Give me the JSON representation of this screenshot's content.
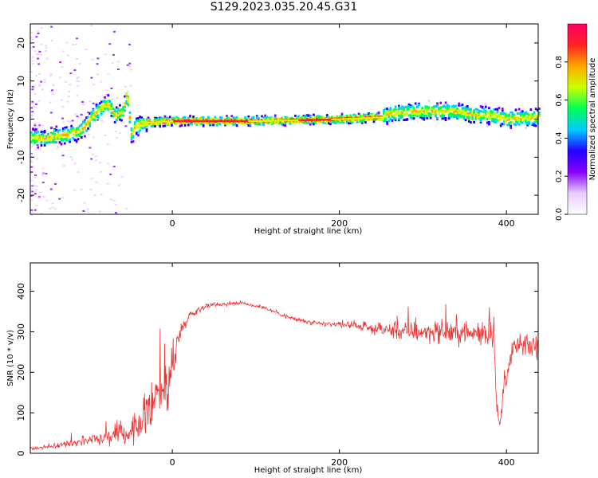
{
  "title": "S129.2023.035.20.45.G31",
  "chart_data": [
    {
      "type": "heatmap",
      "name": "spectrogram",
      "xlabel": "Height of straight line (km)",
      "ylabel": "Frequency (Hz)",
      "xlim": [
        -170,
        438
      ],
      "ylim": [
        -25,
        25
      ],
      "xticks": [
        0,
        200,
        400
      ],
      "yticks": [
        -20,
        -10,
        0,
        10,
        20
      ],
      "ridge": [
        {
          "x": -170,
          "y": -5
        },
        {
          "x": -150,
          "y": -5
        },
        {
          "x": -125,
          "y": -4
        },
        {
          "x": -110,
          "y": -3
        },
        {
          "x": -95,
          "y": 1
        },
        {
          "x": -85,
          "y": 3
        },
        {
          "x": -78,
          "y": 4
        },
        {
          "x": -70,
          "y": 1
        },
        {
          "x": -60,
          "y": 2
        },
        {
          "x": -55,
          "y": 7
        },
        {
          "x": -50,
          "y": -4
        },
        {
          "x": -45,
          "y": -2
        },
        {
          "x": -35,
          "y": -1
        },
        {
          "x": 0,
          "y": -0.5
        },
        {
          "x": 100,
          "y": -0.5
        },
        {
          "x": 150,
          "y": -0.3
        },
        {
          "x": 200,
          "y": 0
        },
        {
          "x": 250,
          "y": 0.5
        },
        {
          "x": 260,
          "y": 1.5
        },
        {
          "x": 290,
          "y": 2
        },
        {
          "x": 340,
          "y": 2
        },
        {
          "x": 360,
          "y": 1
        },
        {
          "x": 380,
          "y": 1
        },
        {
          "x": 400,
          "y": 0
        },
        {
          "x": 438,
          "y": 0.5
        }
      ],
      "colorbar": {
        "label": "Normalized spectral amplitude",
        "range": [
          0,
          1
        ],
        "ticks": [
          0.0,
          0.2,
          0.4,
          0.6,
          0.8
        ],
        "tick_labels": [
          "0.0",
          "0.2",
          "0.4",
          "0.6",
          "0.8"
        ],
        "colors": [
          "#ffffff",
          "#e6ccff",
          "#8800ff",
          "#2200ff",
          "#00ccff",
          "#00ff55",
          "#ccff00",
          "#ffaa00",
          "#ff2222",
          "#ff0066"
        ]
      }
    },
    {
      "type": "line",
      "name": "snr",
      "xlabel": "Height of straight line (km)",
      "ylabel": "SNR (10 * v/v)",
      "xlim": [
        -170,
        438
      ],
      "ylim": [
        0,
        470
      ],
      "xticks": [
        0,
        200,
        400
      ],
      "yticks": [
        0,
        100,
        200,
        300,
        400
      ],
      "series": [
        {
          "name": "SNR",
          "color": "#ee3333",
          "points": [
            {
              "x": -170,
              "y": 12,
              "n": 8
            },
            {
              "x": -140,
              "y": 18,
              "n": 10
            },
            {
              "x": -110,
              "y": 30,
              "n": 18
            },
            {
              "x": -80,
              "y": 40,
              "n": 40
            },
            {
              "x": -50,
              "y": 55,
              "n": 50
            },
            {
              "x": -35,
              "y": 80,
              "n": 70
            },
            {
              "x": -25,
              "y": 130,
              "n": 130
            },
            {
              "x": -15,
              "y": 170,
              "n": 130
            },
            {
              "x": -5,
              "y": 150,
              "n": 130
            },
            {
              "x": 0,
              "y": 230,
              "n": 90
            },
            {
              "x": 10,
              "y": 300,
              "n": 30
            },
            {
              "x": 20,
              "y": 340,
              "n": 15
            },
            {
              "x": 40,
              "y": 365,
              "n": 10
            },
            {
              "x": 80,
              "y": 372,
              "n": 8
            },
            {
              "x": 110,
              "y": 360,
              "n": 8
            },
            {
              "x": 140,
              "y": 335,
              "n": 10
            },
            {
              "x": 170,
              "y": 320,
              "n": 10
            },
            {
              "x": 210,
              "y": 318,
              "n": 12
            },
            {
              "x": 250,
              "y": 305,
              "n": 25
            },
            {
              "x": 280,
              "y": 300,
              "n": 40
            },
            {
              "x": 320,
              "y": 300,
              "n": 45
            },
            {
              "x": 360,
              "y": 295,
              "n": 45
            },
            {
              "x": 380,
              "y": 300,
              "n": 55
            },
            {
              "x": 385,
              "y": 310,
              "n": 70
            },
            {
              "x": 388,
              "y": 120,
              "n": 40
            },
            {
              "x": 392,
              "y": 65,
              "n": 15
            },
            {
              "x": 398,
              "y": 180,
              "n": 40
            },
            {
              "x": 410,
              "y": 265,
              "n": 45
            },
            {
              "x": 438,
              "y": 262,
              "n": 45
            }
          ]
        }
      ]
    }
  ]
}
